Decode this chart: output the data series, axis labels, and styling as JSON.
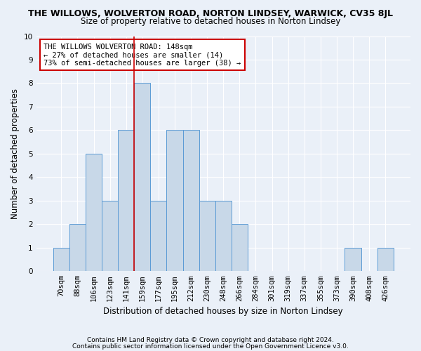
{
  "title": "THE WILLOWS, WOLVERTON ROAD, NORTON LINDSEY, WARWICK, CV35 8JL",
  "subtitle": "Size of property relative to detached houses in Norton Lindsey",
  "xlabel": "Distribution of detached houses by size in Norton Lindsey",
  "ylabel": "Number of detached properties",
  "bar_color": "#c8d8e8",
  "bar_edge_color": "#5b9bd5",
  "categories": [
    "70sqm",
    "88sqm",
    "106sqm",
    "123sqm",
    "141sqm",
    "159sqm",
    "177sqm",
    "195sqm",
    "212sqm",
    "230sqm",
    "248sqm",
    "266sqm",
    "284sqm",
    "301sqm",
    "319sqm",
    "337sqm",
    "355sqm",
    "373sqm",
    "390sqm",
    "408sqm",
    "426sqm"
  ],
  "values": [
    1,
    2,
    5,
    3,
    6,
    8,
    3,
    6,
    6,
    3,
    3,
    2,
    0,
    0,
    0,
    0,
    0,
    0,
    1,
    0,
    1
  ],
  "ylim": [
    0,
    10
  ],
  "yticks": [
    0,
    1,
    2,
    3,
    4,
    5,
    6,
    7,
    8,
    9,
    10
  ],
  "vline_index": 4.5,
  "vline_color": "#cc0000",
  "annotation_text": "THE WILLOWS WOLVERTON ROAD: 148sqm\n← 27% of detached houses are smaller (14)\n73% of semi-detached houses are larger (38) →",
  "annotation_box_color": "#ffffff",
  "annotation_box_edge_color": "#cc0000",
  "footer1": "Contains HM Land Registry data © Crown copyright and database right 2024.",
  "footer2": "Contains public sector information licensed under the Open Government Licence v3.0.",
  "background_color": "#eaf0f8",
  "grid_color": "#ffffff",
  "title_fontsize": 9,
  "subtitle_fontsize": 8.5,
  "ylabel_fontsize": 8.5,
  "xlabel_fontsize": 8.5,
  "tick_fontsize": 7.5,
  "annotation_fontsize": 7.5,
  "footer_fontsize": 6.5
}
